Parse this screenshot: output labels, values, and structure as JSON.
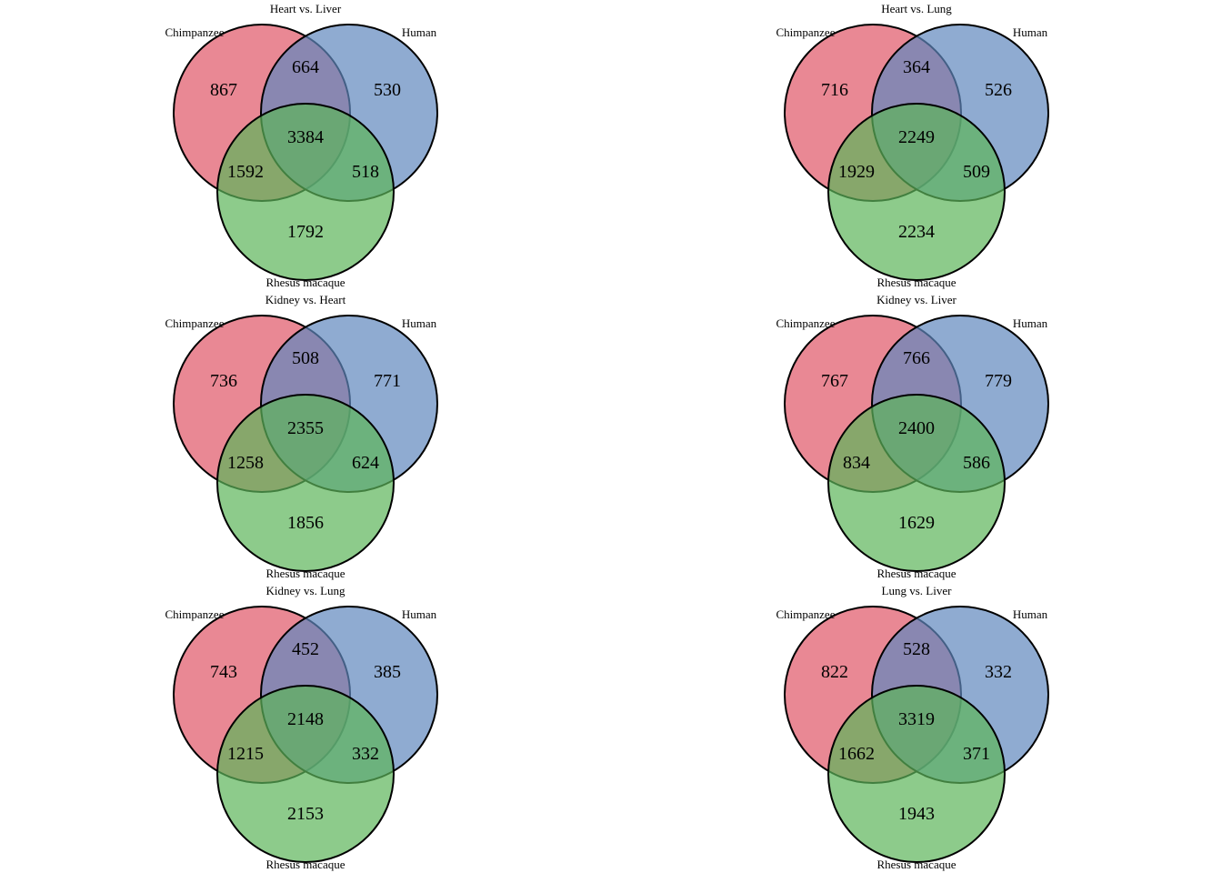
{
  "colors": {
    "chimpanzee": "#e05567",
    "human": "#5f87bd",
    "rhesus": "#5cb55a"
  },
  "set_labels": {
    "chimpanzee": "Chimpanzee",
    "human": "Human",
    "rhesus": "Rhesus macaque"
  },
  "diagrams": [
    {
      "title": "Heart vs. Liver",
      "counts": {
        "chimp_only": "867",
        "human_only": "530",
        "rhesus_only": "1792",
        "chimp_human": "664",
        "chimp_rhesus": "1592",
        "human_rhesus": "518",
        "all": "3384"
      }
    },
    {
      "title": "Heart vs. Lung",
      "counts": {
        "chimp_only": "716",
        "human_only": "526",
        "rhesus_only": "2234",
        "chimp_human": "364",
        "chimp_rhesus": "1929",
        "human_rhesus": "509",
        "all": "2249"
      }
    },
    {
      "title": "Kidney vs. Heart",
      "counts": {
        "chimp_only": "736",
        "human_only": "771",
        "rhesus_only": "1856",
        "chimp_human": "508",
        "chimp_rhesus": "1258",
        "human_rhesus": "624",
        "all": "2355"
      }
    },
    {
      "title": "Kidney vs. Liver",
      "counts": {
        "chimp_only": "767",
        "human_only": "779",
        "rhesus_only": "1629",
        "chimp_human": "766",
        "chimp_rhesus": "834",
        "human_rhesus": "586",
        "all": "2400"
      }
    },
    {
      "title": "Kidney vs. Lung",
      "counts": {
        "chimp_only": "743",
        "human_only": "385",
        "rhesus_only": "2153",
        "chimp_human": "452",
        "chimp_rhesus": "1215",
        "human_rhesus": "332",
        "all": "2148"
      }
    },
    {
      "title": "Lung vs. Liver",
      "counts": {
        "chimp_only": "822",
        "human_only": "332",
        "rhesus_only": "1943",
        "chimp_human": "528",
        "chimp_rhesus": "1662",
        "human_rhesus": "371",
        "all": "3319"
      }
    }
  ]
}
